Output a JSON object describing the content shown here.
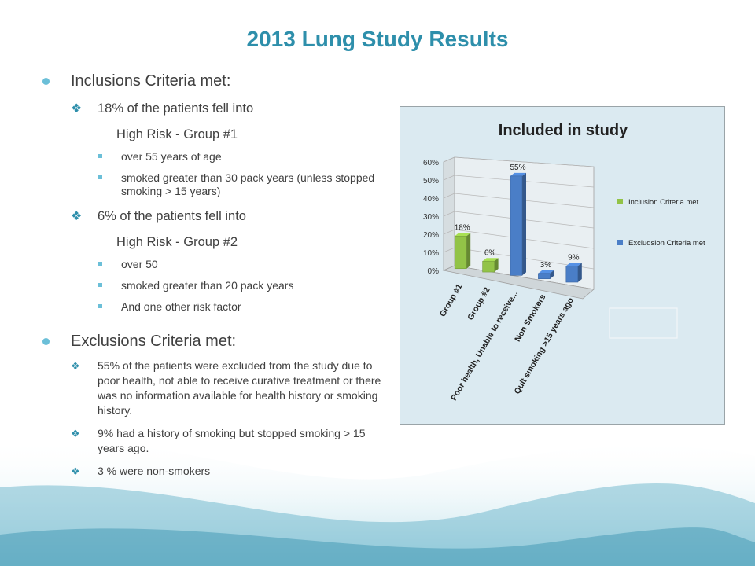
{
  "slide": {
    "title": "2013 Lung Study Results",
    "inclusion": {
      "heading": "Inclusions Criteria met:",
      "group1_line": "18% of the patients fell into",
      "group1_name": "High Risk - Group #1",
      "group1_criteria": [
        "over 55 years of age",
        "smoked greater than 30 pack years (unless stopped smoking > 15 years)"
      ],
      "group2_line": "6% of the patients fell into",
      "group2_name": "High Risk - Group #2",
      "group2_criteria": [
        "over 50",
        "smoked greater than 20 pack years",
        "And one other risk factor"
      ]
    },
    "exclusion": {
      "heading": "Exclusions Criteria met:",
      "items": [
        "55% of the patients were excluded from the study due to poor health, not able to receive curative treatment or there was no information available for health history or smoking history.",
        "9% had a history of smoking but stopped smoking > 15 years ago.",
        "3 % were non-smokers"
      ]
    }
  },
  "chart_data": {
    "type": "bar",
    "title": "Included in study",
    "categories": [
      "Group #1",
      "Group #2",
      "Poor health, Unable to receive...",
      "Non Smokers",
      "Quit smoking >15 years ago"
    ],
    "values": [
      18,
      6,
      55,
      3,
      9
    ],
    "data_labels": [
      "18%",
      "6%",
      "55%",
      "3%",
      "9%"
    ],
    "bar_series_index": [
      0,
      0,
      1,
      1,
      1
    ],
    "series": [
      {
        "name": "Inclusion Criteria  met",
        "color": "#92c347"
      },
      {
        "name": "Excludsion Criteria  met",
        "color": "#4a7ec7"
      }
    ],
    "y_ticks": [
      "0%",
      "10%",
      "20%",
      "30%",
      "40%",
      "50%",
      "60%"
    ],
    "ylim": [
      0,
      60
    ],
    "legend_position": "right",
    "grid": true
  }
}
